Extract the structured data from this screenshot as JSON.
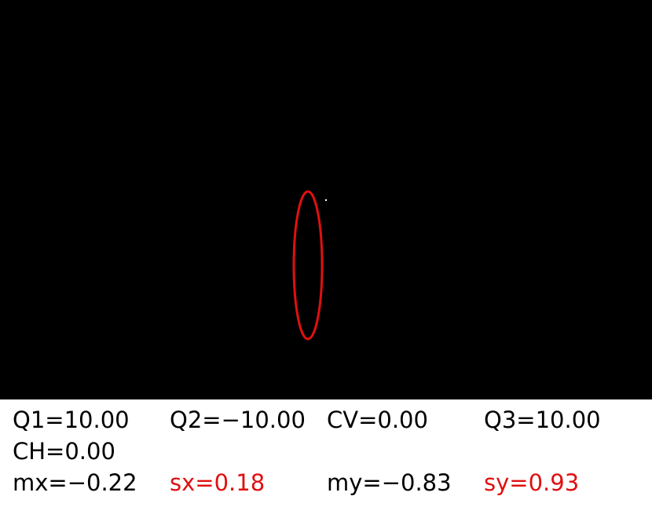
{
  "readout": {
    "q1": "Q1=10.00",
    "q2": "Q2=−10.00",
    "cv": "CV=0.00",
    "q3": "Q3=10.00",
    "ch": "CH=0.00",
    "mx": "mx=−0.22",
    "sx": "sx=0.18",
    "my": "my=−0.83",
    "sy": "sy=0.93"
  },
  "colors": {
    "canvas_background": "#000000",
    "ellipse": "#e01010",
    "highlight_text": "#e01010",
    "panel_background": "#ffffff"
  }
}
